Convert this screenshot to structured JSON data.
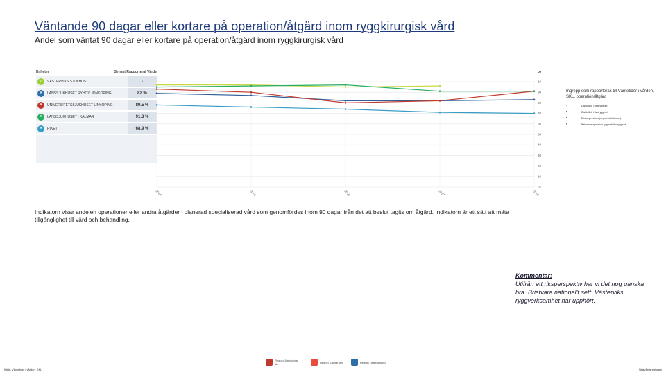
{
  "title": "Väntande 90 dagar eller kortare på operation/åtgärd inom ryggkirurgisk vård",
  "subtitle": "Andel som väntat 90 dagar eller kortare på operation/åtgärd inom ryggkirurgisk vård",
  "table": {
    "header_unit": "Enheter",
    "header_latest": "Senast Rapporterat Värde",
    "rows": [
      {
        "name": "VÄSTERVIKS SJUKHUS",
        "value": "-",
        "color": "#9acd32",
        "icon": "check-icon",
        "glyph": "✓"
      },
      {
        "name": "LÄNSSJUKHUSET RYHOV JÖNKÖPING",
        "value": "82 %",
        "color": "#2e6fa8",
        "icon": "cross-icon",
        "glyph": "✕"
      },
      {
        "name": "UNIVERSITETSSJUKHUSET LINKÖPING",
        "value": "89.5 %",
        "color": "#c0392b",
        "icon": "cross-icon",
        "glyph": "✕"
      },
      {
        "name": "LÄNSSJUKHUSET I KALMAR",
        "value": "91.3 %",
        "color": "#27ae60",
        "icon": "cross-icon",
        "glyph": "✕"
      },
      {
        "name": "RIKET",
        "value": "68.9 %",
        "color": "#3a9ec4",
        "icon": "cross-icon",
        "glyph": "✕"
      }
    ]
  },
  "chart_data": {
    "type": "line",
    "x": [
      "2014",
      "2015",
      "2016",
      "2017",
      "2018"
    ],
    "y_axis_label": "Procent",
    "ylim": [
      0,
      100
    ],
    "y_ticks": [
      "0 %",
      "10 %",
      "20 %",
      "30 %",
      "40 %",
      "50 %",
      "60 %",
      "70 %",
      "80 %",
      "90 %",
      "100 %"
    ],
    "grid": true,
    "series": [
      {
        "name": "VÄSTERVIKS SJUKHUS",
        "color": "#c8d84a",
        "values": [
          97,
          97,
          95,
          96,
          null
        ]
      },
      {
        "name": "LÄNSSJUKHUSET RYHOV JÖNKÖPING",
        "color": "#2e5f9a",
        "values": [
          89,
          87,
          82,
          82,
          83
        ]
      },
      {
        "name": "UNIVERSITETSSJUKHUSET LINKÖPING",
        "color": "#c0392b",
        "values": [
          93,
          90,
          80,
          82,
          91
        ]
      },
      {
        "name": "LÄNSSJUKHUSET I KALMAR",
        "color": "#27ae60",
        "values": [
          95,
          96,
          97,
          91,
          91
        ]
      },
      {
        "name": "RIKET",
        "color": "#3a9ec4",
        "values": [
          78,
          76,
          74,
          71,
          70
        ]
      }
    ]
  },
  "legend": {
    "title": "Ingrepp som rapporteras till Väntetider i vården, SKL, operation/åtgärd",
    "items": [
      "Diskbråck i halsryggrad",
      "Diskbråck i ländryggrad",
      "Dekompression (segmentell stenos)",
      "Bakre steloperation ryggrad/ländryggrad"
    ]
  },
  "description": "Indikatorn visar andelen operationer eller andra åtgärder i planerad specialiserad vård som genomfördes inom 90 dagar från det att beslut tagits om åtgärd. Indikatorn är ett sätt att mäta tillgänglighet till vård och behandling.",
  "comment": {
    "heading": "Kommentar:",
    "text": "Utifrån ett riksperspektiv har vi det nog ganska bra. Bristvara nationellt sett. Västerviks ryggverksamhet har upphört."
  },
  "footer": {
    "source": "Källa: Väntetider i vården, SKL",
    "page": "Sjukvårdsregionen"
  },
  "logos": [
    {
      "text": "Region Jönköpings län",
      "color": "#c0392b"
    },
    {
      "text": "Region Kalmar län",
      "color": "#e74c3c"
    },
    {
      "text": "Region Östergötland",
      "color": "#2e6fa8"
    }
  ]
}
